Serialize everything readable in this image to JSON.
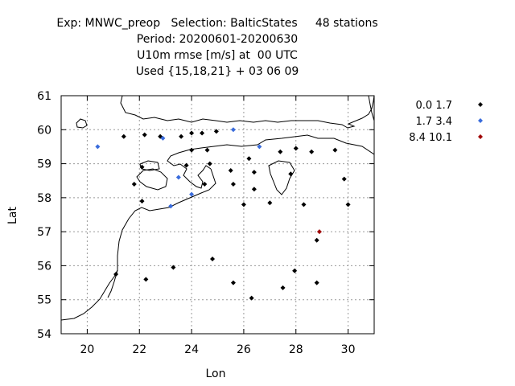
{
  "chart_data": {
    "type": "scatter",
    "title_lines": [
      "Exp: MNWC_preop   Selection: BalticStates     48 stations",
      "Period: 20200601-20200630",
      "U10m rmse [m/s] at  00 UTC",
      "Used {15,18,21} + 03 06 09"
    ],
    "xlabel": "Lon",
    "ylabel": "Lat",
    "xlim": [
      19,
      31
    ],
    "ylim": [
      54,
      61
    ],
    "xticks": [
      20,
      22,
      24,
      26,
      28,
      30
    ],
    "yticks": [
      54,
      55,
      56,
      57,
      58,
      59,
      60,
      61
    ],
    "grid": true,
    "legend_position": "top-right, outside plot",
    "series": [
      {
        "name": "0.0 1.7",
        "color": "#000000",
        "points": [
          [
            21.4,
            59.8
          ],
          [
            22.2,
            59.85
          ],
          [
            22.8,
            59.8
          ],
          [
            23.6,
            59.8
          ],
          [
            24.0,
            59.9
          ],
          [
            24.4,
            59.9
          ],
          [
            24.95,
            59.95
          ],
          [
            24.0,
            59.4
          ],
          [
            24.6,
            59.4
          ],
          [
            27.4,
            59.35
          ],
          [
            28.0,
            59.45
          ],
          [
            28.6,
            59.35
          ],
          [
            29.5,
            59.4
          ],
          [
            22.1,
            58.9
          ],
          [
            23.8,
            58.95
          ],
          [
            24.7,
            59.0
          ],
          [
            25.5,
            58.8
          ],
          [
            26.2,
            59.15
          ],
          [
            26.4,
            58.75
          ],
          [
            27.8,
            58.7
          ],
          [
            29.85,
            58.55
          ],
          [
            21.8,
            58.4
          ],
          [
            24.5,
            58.4
          ],
          [
            25.6,
            58.4
          ],
          [
            26.4,
            58.25
          ],
          [
            22.1,
            57.9
          ],
          [
            26.0,
            57.8
          ],
          [
            27.0,
            57.85
          ],
          [
            28.3,
            57.8
          ],
          [
            30.0,
            57.8
          ],
          [
            28.8,
            56.75
          ],
          [
            24.8,
            56.2
          ],
          [
            23.3,
            55.95
          ],
          [
            21.1,
            55.75
          ],
          [
            22.25,
            55.6
          ],
          [
            25.6,
            55.5
          ],
          [
            27.95,
            55.85
          ],
          [
            27.5,
            55.35
          ],
          [
            28.8,
            55.5
          ],
          [
            26.3,
            55.05
          ]
        ]
      },
      {
        "name": "1.7 3.4",
        "color": "#3a6cdc",
        "points": [
          [
            20.4,
            59.5
          ],
          [
            22.9,
            59.75
          ],
          [
            25.6,
            60.0
          ],
          [
            26.6,
            59.5
          ],
          [
            23.5,
            58.6
          ],
          [
            24.0,
            58.1
          ],
          [
            23.2,
            57.75
          ]
        ]
      },
      {
        "name": "8.4 10.1",
        "color": "#a00000",
        "points": [
          [
            28.9,
            57.0
          ]
        ]
      }
    ]
  }
}
